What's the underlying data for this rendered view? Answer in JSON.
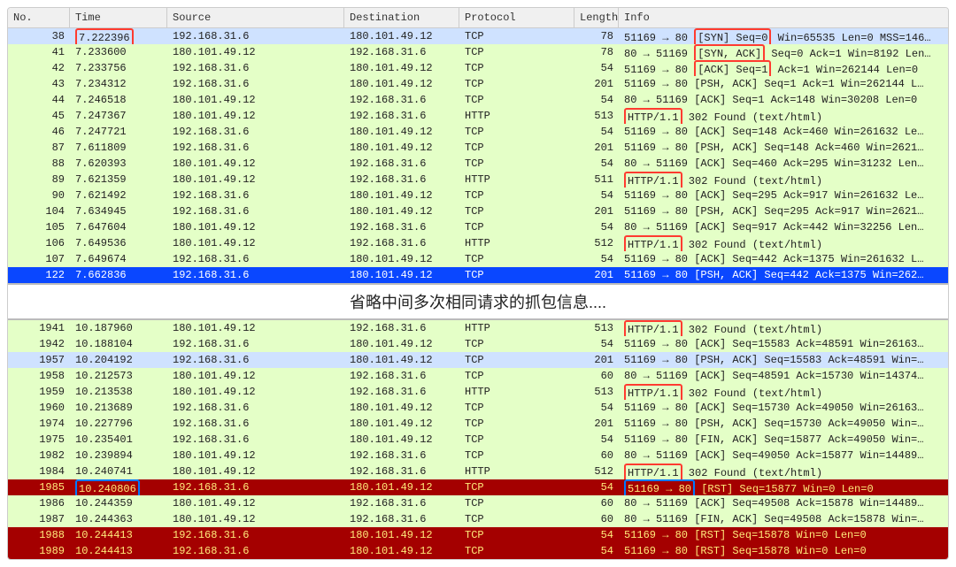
{
  "colors": {
    "row_green": "#e4ffc7",
    "row_sel_blue": "#cfe2ff",
    "row_dark_blue": "#0a47ff",
    "row_dark_red": "#a40000",
    "red_hl": "#ff3b30",
    "blue_hl": "#007aff",
    "header_bg": "#f0f0f0"
  },
  "columns": {
    "no": "No.",
    "time": "Time",
    "source": "Source",
    "destination": "Destination",
    "protocol": "Protocol",
    "length": "Length",
    "info": "Info"
  },
  "divider_text": "省略中间多次相同请求的抓包信息....",
  "top": [
    {
      "no": "38",
      "time": "7.222396",
      "time_box": "red",
      "src": "192.168.31.6",
      "dst": "180.101.49.12",
      "proto": "TCP",
      "len": "78",
      "info_pre": "51169 → 80",
      "info_box": "[SYN] Seq=0",
      "info_box_style": "red",
      "info_post": " Win=65535 Len=0 MSS=146…",
      "row": "sel-blue"
    },
    {
      "no": "41",
      "time": "7.233600",
      "src": "180.101.49.12",
      "dst": "192.168.31.6",
      "proto": "TCP",
      "len": "78",
      "info_pre": "80 → 51169 ",
      "info_box": "[SYN, ACK]",
      "info_box_style": "red",
      "info_post": " Seq=0 Ack=1 Win=8192 Len…",
      "row": "green"
    },
    {
      "no": "42",
      "time": "7.233756",
      "src": "192.168.31.6",
      "dst": "180.101.49.12",
      "proto": "TCP",
      "len": "54",
      "info_pre": "51169 → 80 ",
      "info_box": "[ACK] Seq=1",
      "info_box_style": "red",
      "info_post": " Ack=1 Win=262144 Len=0",
      "row": "green"
    },
    {
      "no": "43",
      "time": "7.234312",
      "src": "192.168.31.6",
      "dst": "180.101.49.12",
      "proto": "TCP",
      "len": "201",
      "info_pre": "51169 → 80",
      "info_post": " [PSH, ACK] Seq=1 Ack=1 Win=262144 L…",
      "row": "green"
    },
    {
      "no": "44",
      "time": "7.246518",
      "src": "180.101.49.12",
      "dst": "192.168.31.6",
      "proto": "TCP",
      "len": "54",
      "info_pre": "80 → 51169",
      "info_post": " [ACK] Seq=1 Ack=148 Win=30208 Len=0",
      "row": "green"
    },
    {
      "no": "45",
      "time": "7.247367",
      "src": "180.101.49.12",
      "dst": "192.168.31.6",
      "proto": "HTTP",
      "len": "513",
      "info_box": "HTTP/1.1",
      "info_box_style": "red",
      "info_post": " 302 Found  (text/html)",
      "row": "green"
    },
    {
      "no": "46",
      "time": "7.247721",
      "src": "192.168.31.6",
      "dst": "180.101.49.12",
      "proto": "TCP",
      "len": "54",
      "info_pre": "51169 → 80",
      "info_post": " [ACK] Seq=148 Ack=460 Win=261632 Le…",
      "row": "green"
    },
    {
      "no": "87",
      "time": "7.611809",
      "src": "192.168.31.6",
      "dst": "180.101.49.12",
      "proto": "TCP",
      "len": "201",
      "info_pre": "51169 → 80",
      "info_post": " [PSH, ACK] Seq=148 Ack=460 Win=2621…",
      "row": "green"
    },
    {
      "no": "88",
      "time": "7.620393",
      "src": "180.101.49.12",
      "dst": "192.168.31.6",
      "proto": "TCP",
      "len": "54",
      "info_pre": "80 → 51169",
      "info_post": " [ACK] Seq=460 Ack=295 Win=31232 Len…",
      "row": "green"
    },
    {
      "no": "89",
      "time": "7.621359",
      "src": "180.101.49.12",
      "dst": "192.168.31.6",
      "proto": "HTTP",
      "len": "511",
      "info_box": "HTTP/1.1",
      "info_box_style": "red",
      "info_post": " 302 Found  (text/html)",
      "row": "green"
    },
    {
      "no": "90",
      "time": "7.621492",
      "src": "192.168.31.6",
      "dst": "180.101.49.12",
      "proto": "TCP",
      "len": "54",
      "info_pre": "51169 → 80",
      "info_post": " [ACK] Seq=295 Ack=917 Win=261632 Le…",
      "row": "green"
    },
    {
      "no": "104",
      "time": "7.634945",
      "src": "192.168.31.6",
      "dst": "180.101.49.12",
      "proto": "TCP",
      "len": "201",
      "info_pre": "51169 → 80",
      "info_post": " [PSH, ACK] Seq=295 Ack=917 Win=2621…",
      "row": "green"
    },
    {
      "no": "105",
      "time": "7.647604",
      "src": "180.101.49.12",
      "dst": "192.168.31.6",
      "proto": "TCP",
      "len": "54",
      "info_pre": "80 → 51169",
      "info_post": " [ACK] Seq=917 Ack=442 Win=32256 Len…",
      "row": "green"
    },
    {
      "no": "106",
      "time": "7.649536",
      "src": "180.101.49.12",
      "dst": "192.168.31.6",
      "proto": "HTTP",
      "len": "512",
      "info_box": "HTTP/1.1",
      "info_box_style": "red",
      "info_post": " 302 Found  (text/html)",
      "row": "green"
    },
    {
      "no": "107",
      "time": "7.649674",
      "src": "192.168.31.6",
      "dst": "180.101.49.12",
      "proto": "TCP",
      "len": "54",
      "info_pre": "51169 → 80",
      "info_post": " [ACK] Seq=442 Ack=1375 Win=261632 L…",
      "row": "green"
    },
    {
      "no": "122",
      "time": "7.662836",
      "src": "192.168.31.6",
      "dst": "180.101.49.12",
      "proto": "TCP",
      "len": "201",
      "info_pre": "51169 → 80",
      "info_post": " [PSH, ACK] Seq=442 Ack=1375 Win=262…",
      "row": "dark-blue"
    }
  ],
  "bottom": [
    {
      "no": "1941",
      "time": "10.187960",
      "src": "180.101.49.12",
      "dst": "192.168.31.6",
      "proto": "HTTP",
      "len": "513",
      "info_box": "HTTP/1.1",
      "info_box_style": "red",
      "info_post": " 302 Found  (text/html)",
      "row": "green"
    },
    {
      "no": "1942",
      "time": "10.188104",
      "src": "192.168.31.6",
      "dst": "180.101.49.12",
      "proto": "TCP",
      "len": "54",
      "info_pre": "51169 → 80",
      "info_post": " [ACK] Seq=15583 Ack=48591 Win=26163…",
      "row": "green"
    },
    {
      "no": "1957",
      "time": "10.204192",
      "src": "192.168.31.6",
      "dst": "180.101.49.12",
      "proto": "TCP",
      "len": "201",
      "info_pre": "51169 → 80",
      "info_post": " [PSH, ACK] Seq=15583 Ack=48591 Win=…",
      "row": "sel-blue"
    },
    {
      "no": "1958",
      "time": "10.212573",
      "src": "180.101.49.12",
      "dst": "192.168.31.6",
      "proto": "TCP",
      "len": "60",
      "info_pre": "80 → 51169",
      "info_post": " [ACK] Seq=48591 Ack=15730 Win=14374…",
      "row": "green"
    },
    {
      "no": "1959",
      "time": "10.213538",
      "src": "180.101.49.12",
      "dst": "192.168.31.6",
      "proto": "HTTP",
      "len": "513",
      "info_box": "HTTP/1.1",
      "info_box_style": "red",
      "info_post": " 302 Found  (text/html)",
      "row": "green"
    },
    {
      "no": "1960",
      "time": "10.213689",
      "src": "192.168.31.6",
      "dst": "180.101.49.12",
      "proto": "TCP",
      "len": "54",
      "info_pre": "51169 → 80",
      "info_post": " [ACK] Seq=15730 Ack=49050 Win=26163…",
      "row": "green"
    },
    {
      "no": "1974",
      "time": "10.227796",
      "src": "192.168.31.6",
      "dst": "180.101.49.12",
      "proto": "TCP",
      "len": "201",
      "info_pre": "51169 → 80",
      "info_post": " [PSH, ACK] Seq=15730 Ack=49050 Win=…",
      "row": "green"
    },
    {
      "no": "1975",
      "time": "10.235401",
      "src": "192.168.31.6",
      "dst": "180.101.49.12",
      "proto": "TCP",
      "len": "54",
      "info_pre": "51169 → 80",
      "info_post": " [FIN, ACK] Seq=15877 Ack=49050 Win=…",
      "row": "green"
    },
    {
      "no": "1982",
      "time": "10.239894",
      "src": "180.101.49.12",
      "dst": "192.168.31.6",
      "proto": "TCP",
      "len": "60",
      "info_pre": "80 → 51169",
      "info_post": " [ACK] Seq=49050 Ack=15877 Win=14489…",
      "row": "green"
    },
    {
      "no": "1984",
      "time": "10.240741",
      "src": "180.101.49.12",
      "dst": "192.168.31.6",
      "proto": "HTTP",
      "len": "512",
      "info_box": "HTTP/1.1",
      "info_box_style": "red",
      "info_post": " 302 Found  (text/html)",
      "row": "green"
    },
    {
      "no": "1985",
      "time": "10.240806",
      "time_box": "blue",
      "src": "192.168.31.6",
      "dst": "180.101.49.12",
      "proto": "TCP",
      "len": "54",
      "info_pre_box": "51169 → 80",
      "info_pre_box_style": "blue",
      "info_post": " [RST] Seq=15877 Win=0 Len=0",
      "row": "dark-red"
    },
    {
      "no": "1986",
      "time": "10.244359",
      "src": "180.101.49.12",
      "dst": "192.168.31.6",
      "proto": "TCP",
      "len": "60",
      "info_pre": "80 → 51169",
      "info_post": " [ACK] Seq=49508 Ack=15878 Win=14489…",
      "row": "green"
    },
    {
      "no": "1987",
      "time": "10.244363",
      "src": "180.101.49.12",
      "dst": "192.168.31.6",
      "proto": "TCP",
      "len": "60",
      "info_pre": "80 → 51169",
      "info_post": " [FIN, ACK] Seq=49508 Ack=15878 Win=…",
      "row": "green"
    },
    {
      "no": "1988",
      "time": "10.244413",
      "src": "192.168.31.6",
      "dst": "180.101.49.12",
      "proto": "TCP",
      "len": "54",
      "info_pre": "51169 → 80",
      "info_post": " [RST] Seq=15878 Win=0 Len=0",
      "row": "dark-red"
    },
    {
      "no": "1989",
      "time": "10.244413",
      "src": "192.168.31.6",
      "dst": "180.101.49.12",
      "proto": "TCP",
      "len": "54",
      "info_pre": "51169 → 80",
      "info_post": " [RST] Seq=15878 Win=0 Len=0",
      "row": "dark-red"
    }
  ]
}
